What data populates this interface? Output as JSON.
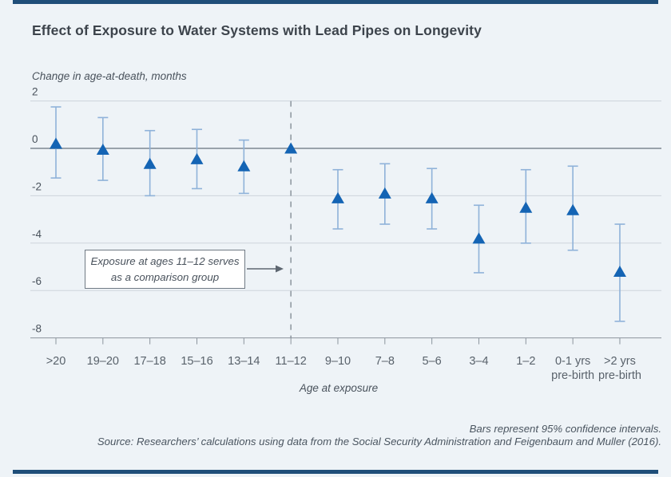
{
  "page": {
    "background_color": "#eef3f7",
    "accent_bar_color": "#1f4e79"
  },
  "chart_data": {
    "type": "scatter",
    "title": "Effect of Exposure to Water Systems with Lead Pipes on Longevity",
    "ylabel": "Change in age-at-death, months",
    "xlabel": "Age at exposure",
    "ylim": [
      -8,
      2
    ],
    "yticks": [
      2,
      0,
      -2,
      -4,
      -6,
      -8
    ],
    "grid": true,
    "marker_shape": "triangle-up",
    "marker_color": "#1464b4",
    "errorbar_color": "#8fb2d9",
    "gridline_color": "#cdd4db",
    "zeroline_color": "#99a2ab",
    "axis_color": "#8b949d",
    "categories": [
      ">20",
      "19–20",
      "17–18",
      "15–16",
      "13–14",
      "11–12",
      "9–10",
      "7–8",
      "5–6",
      "3–4",
      "1–2",
      "0-1 yrs\npre-birth",
      ">2 yrs\npre-birth"
    ],
    "series": [
      {
        "name": "Change in age-at-death (months)",
        "values": [
          0.2,
          -0.05,
          -0.65,
          -0.45,
          -0.75,
          0,
          -2.1,
          -1.9,
          -2.1,
          -3.8,
          -2.5,
          -2.6,
          -5.2
        ],
        "ci_high": [
          1.75,
          1.3,
          0.75,
          0.8,
          0.35,
          null,
          -0.9,
          -0.65,
          -0.85,
          -2.4,
          -0.9,
          -0.75,
          -3.2
        ],
        "ci_low": [
          -1.25,
          -1.35,
          -2.0,
          -1.7,
          -1.9,
          null,
          -3.4,
          -3.2,
          -3.4,
          -5.25,
          -4.0,
          -4.3,
          -7.3
        ]
      }
    ],
    "reference_line": {
      "category": "11–12",
      "style": "dashed-vertical"
    },
    "annotation": {
      "line1": "Exposure at ages 11–12 serves",
      "line2": "as a comparison group",
      "target_category": "11–12"
    }
  },
  "notes": {
    "ci_note": "Bars represent 95% confidence intervals.",
    "source": "Source: Researchers’ calculations using data from the Social Security Administration and Feigenbaum and Muller (2016)."
  }
}
